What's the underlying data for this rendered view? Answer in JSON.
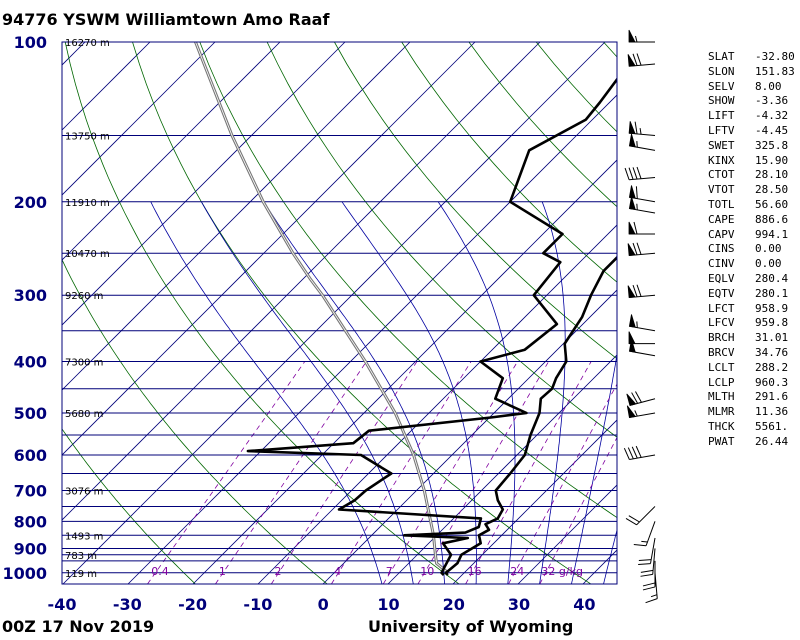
{
  "header": {
    "title": "94776 YSWM Williamtown Amo Raaf"
  },
  "footer": {
    "time": "00Z 17 Nov 2019",
    "source": "University of Wyoming"
  },
  "indices": [
    {
      "name": "SLAT",
      "value": "-32.80"
    },
    {
      "name": "SLON",
      "value": "151.83"
    },
    {
      "name": "SELV",
      "value": "8.00"
    },
    {
      "name": "SHOW",
      "value": "-3.36"
    },
    {
      "name": "LIFT",
      "value": "-4.32"
    },
    {
      "name": "LFTV",
      "value": "-4.45"
    },
    {
      "name": "SWET",
      "value": "325.8"
    },
    {
      "name": "KINX",
      "value": "15.90"
    },
    {
      "name": "CTOT",
      "value": "28.10"
    },
    {
      "name": "VTOT",
      "value": "28.50"
    },
    {
      "name": "TOTL",
      "value": "56.60"
    },
    {
      "name": "CAPE",
      "value": "886.6"
    },
    {
      "name": "CAPV",
      "value": "994.1"
    },
    {
      "name": "CINS",
      "value": "0.00"
    },
    {
      "name": "CINV",
      "value": "0.00"
    },
    {
      "name": "EQLV",
      "value": "280.4"
    },
    {
      "name": "EQTV",
      "value": "280.1"
    },
    {
      "name": "LFCT",
      "value": "958.9"
    },
    {
      "name": "LFCV",
      "value": "959.8"
    },
    {
      "name": "BRCH",
      "value": "31.01"
    },
    {
      "name": "BRCV",
      "value": "34.76"
    },
    {
      "name": "LCLT",
      "value": "288.2"
    },
    {
      "name": "LCLP",
      "value": "960.3"
    },
    {
      "name": "MLTH",
      "value": "291.6"
    },
    {
      "name": "MLMR",
      "value": "11.36"
    },
    {
      "name": "THCK",
      "value": "5561."
    },
    {
      "name": "PWAT",
      "value": "26.44"
    }
  ],
  "chart_data": {
    "type": "line",
    "chart_kind": "skew-T log-P sounding",
    "x_axis": {
      "min": -40,
      "max": 45,
      "ticks": [
        -40,
        -30,
        -20,
        -10,
        0,
        10,
        20,
        30,
        40
      ],
      "tick_labels": [
        "-40",
        "-30",
        "-20",
        "-10",
        "0",
        "10",
        "20",
        "30",
        "40"
      ]
    },
    "y_axis": {
      "scale": "log",
      "min": 100,
      "max": 1050,
      "ticks": [
        100,
        200,
        300,
        400,
        500,
        600,
        700,
        800,
        900,
        1000
      ],
      "tick_labels": [
        "100",
        "200",
        "300",
        "400",
        "500",
        "600",
        "700",
        "800",
        "900",
        "1000"
      ]
    },
    "isobars": [
      100,
      150,
      200,
      250,
      300,
      350,
      400,
      450,
      500,
      550,
      600,
      650,
      700,
      750,
      800,
      850,
      900,
      925,
      950,
      1000
    ],
    "height_labels": [
      {
        "p": 100,
        "text": "16270 m"
      },
      {
        "p": 150,
        "text": "13750 m"
      },
      {
        "p": 200,
        "text": "11910 m"
      },
      {
        "p": 250,
        "text": "10470 m"
      },
      {
        "p": 300,
        "text": "9260 m"
      },
      {
        "p": 400,
        "text": "7300 m"
      },
      {
        "p": 500,
        "text": "5680 m"
      },
      {
        "p": 700,
        "text": "3076 m"
      },
      {
        "p": 850,
        "text": "1493 m"
      },
      {
        "p": 925,
        "text": "783 m"
      },
      {
        "p": 1000,
        "text": "119 m"
      }
    ],
    "mixing_ratio_labels": [
      "0.4",
      "1",
      "2",
      "4",
      "7",
      "10",
      "16",
      "24",
      "32 g/kg"
    ],
    "mixing_ratio_values": [
      0.4,
      1,
      2,
      4,
      7,
      10,
      16,
      24,
      32
    ],
    "isotherm_step": 10,
    "dry_adiabats_theta": [
      250,
      270,
      290,
      310,
      330,
      350,
      370,
      390,
      410,
      430,
      450,
      470
    ],
    "moist_adiabats_theta": [
      280,
      285,
      290,
      295,
      300,
      305,
      310,
      315
    ],
    "temperature_profile": [
      {
        "p": 1010,
        "t": 17.8
      },
      {
        "p": 1000,
        "t": 17.2
      },
      {
        "p": 960,
        "t": 17.5
      },
      {
        "p": 925,
        "t": 16.8
      },
      {
        "p": 880,
        "t": 18.0
      },
      {
        "p": 850,
        "t": 16.5
      },
      {
        "p": 830,
        "t": 17.2
      },
      {
        "p": 810,
        "t": 15.8
      },
      {
        "p": 790,
        "t": 16.8
      },
      {
        "p": 760,
        "t": 16.2
      },
      {
        "p": 730,
        "t": 14.0
      },
      {
        "p": 700,
        "t": 12.2
      },
      {
        "p": 650,
        "t": 11.8
      },
      {
        "p": 600,
        "t": 11.2
      },
      {
        "p": 550,
        "t": 9.0
      },
      {
        "p": 500,
        "t": 7.0
      },
      {
        "p": 470,
        "t": 5.0
      },
      {
        "p": 450,
        "t": 5.2
      },
      {
        "p": 430,
        "t": 4.2
      },
      {
        "p": 400,
        "t": 3.2
      },
      {
        "p": 370,
        "t": 0.2
      },
      {
        "p": 330,
        "t": -1.2
      },
      {
        "p": 300,
        "t": -3.2
      },
      {
        "p": 270,
        "t": -5.0
      },
      {
        "p": 250,
        "t": -5.0
      },
      {
        "p": 230,
        "t": -0.2
      },
      {
        "p": 200,
        "t": 4.2
      },
      {
        "p": 180,
        "t": 5.2
      },
      {
        "p": 170,
        "t": 8.2
      },
      {
        "p": 155,
        "t": 9.2
      },
      {
        "p": 140,
        "t": 11.2
      },
      {
        "p": 130,
        "t": 11.2
      },
      {
        "p": 120,
        "t": 13.2
      },
      {
        "p": 115,
        "t": 14.2
      },
      {
        "p": 110,
        "t": 14.2
      },
      {
        "p": 100,
        "t": 16.2
      }
    ],
    "dewpoint_profile": [
      {
        "p": 1010,
        "t": 17.2
      },
      {
        "p": 1000,
        "t": 16.5
      },
      {
        "p": 925,
        "t": 15.2
      },
      {
        "p": 880,
        "t": 12.2
      },
      {
        "p": 860,
        "t": 15.2
      },
      {
        "p": 850,
        "t": 5.0
      },
      {
        "p": 840,
        "t": 14.0
      },
      {
        "p": 820,
        "t": 15.2
      },
      {
        "p": 790,
        "t": 14.2
      },
      {
        "p": 760,
        "t": -9.0
      },
      {
        "p": 730,
        "t": -8.0
      },
      {
        "p": 700,
        "t": -7.8
      },
      {
        "p": 650,
        "t": -6.5
      },
      {
        "p": 600,
        "t": -14.0
      },
      {
        "p": 590,
        "t": -32.0
      },
      {
        "p": 570,
        "t": -17.0
      },
      {
        "p": 540,
        "t": -16.5
      },
      {
        "p": 510,
        "t": 0.2
      },
      {
        "p": 500,
        "t": 5.0
      },
      {
        "p": 470,
        "t": -2.0
      },
      {
        "p": 430,
        "t": -4.0
      },
      {
        "p": 400,
        "t": -10.0
      },
      {
        "p": 380,
        "t": -5.0
      },
      {
        "p": 340,
        "t": -4.0
      },
      {
        "p": 300,
        "t": -12.0
      },
      {
        "p": 260,
        "t": -13.0
      },
      {
        "p": 250,
        "t": -17.0
      },
      {
        "p": 230,
        "t": -17.0
      },
      {
        "p": 200,
        "t": -30.0
      },
      {
        "p": 160,
        "t": -35.0
      },
      {
        "p": 140,
        "t": -31.0
      },
      {
        "p": 130,
        "t": -31.5
      },
      {
        "p": 110,
        "t": -33.0
      },
      {
        "p": 100,
        "t": -36.0
      }
    ],
    "parcel_path": [
      {
        "p": 1000,
        "t": 17.5
      },
      {
        "p": 960,
        "t": 14.3
      },
      {
        "p": 925,
        "t": 12.8
      },
      {
        "p": 850,
        "t": 9.5
      },
      {
        "p": 700,
        "t": 1.2
      },
      {
        "p": 600,
        "t": -5.9
      },
      {
        "p": 500,
        "t": -15.2
      },
      {
        "p": 400,
        "t": -27.7
      },
      {
        "p": 350,
        "t": -35.5
      },
      {
        "p": 300,
        "t": -44.5
      },
      {
        "p": 280,
        "t": -48.8
      },
      {
        "p": 250,
        "t": -55.5
      },
      {
        "p": 200,
        "t": -68.0
      },
      {
        "p": 150,
        "t": -83.0
      },
      {
        "p": 100,
        "t": -103.0
      }
    ],
    "wind_barbs": [
      {
        "p": 100,
        "dir": 270,
        "speed_kt": 55
      },
      {
        "p": 110,
        "dir": 265,
        "speed_kt": 70
      },
      {
        "p": 150,
        "dir": 275,
        "speed_kt": 65
      },
      {
        "p": 160,
        "dir": 280,
        "speed_kt": 55
      },
      {
        "p": 180,
        "dir": 265,
        "speed_kt": 40
      },
      {
        "p": 200,
        "dir": 280,
        "speed_kt": 60
      },
      {
        "p": 210,
        "dir": 280,
        "speed_kt": 55
      },
      {
        "p": 230,
        "dir": 270,
        "speed_kt": 60
      },
      {
        "p": 250,
        "dir": 265,
        "speed_kt": 70
      },
      {
        "p": 300,
        "dir": 265,
        "speed_kt": 70
      },
      {
        "p": 350,
        "dir": 280,
        "speed_kt": 55
      },
      {
        "p": 370,
        "dir": 270,
        "speed_kt": 50
      },
      {
        "p": 390,
        "dir": 280,
        "speed_kt": 50
      },
      {
        "p": 470,
        "dir": 255,
        "speed_kt": 70
      },
      {
        "p": 500,
        "dir": 260,
        "speed_kt": 55
      },
      {
        "p": 600,
        "dir": 260,
        "speed_kt": 40
      },
      {
        "p": 750,
        "dir": 225,
        "speed_kt": 20
      },
      {
        "p": 800,
        "dir": 200,
        "speed_kt": 15
      },
      {
        "p": 860,
        "dir": 190,
        "speed_kt": 20
      },
      {
        "p": 900,
        "dir": 185,
        "speed_kt": 20
      },
      {
        "p": 950,
        "dir": 180,
        "speed_kt": 20
      },
      {
        "p": 1000,
        "dir": 175,
        "speed_kt": 15
      }
    ],
    "colors": {
      "isobar": "#00007a",
      "isotherm": "#00007a",
      "dry_adiabat": "#006600",
      "moist_adiabat": "#0000a0",
      "mixing_ratio": "#8000a0",
      "profile": "#000000",
      "parcel": "#777777"
    }
  }
}
